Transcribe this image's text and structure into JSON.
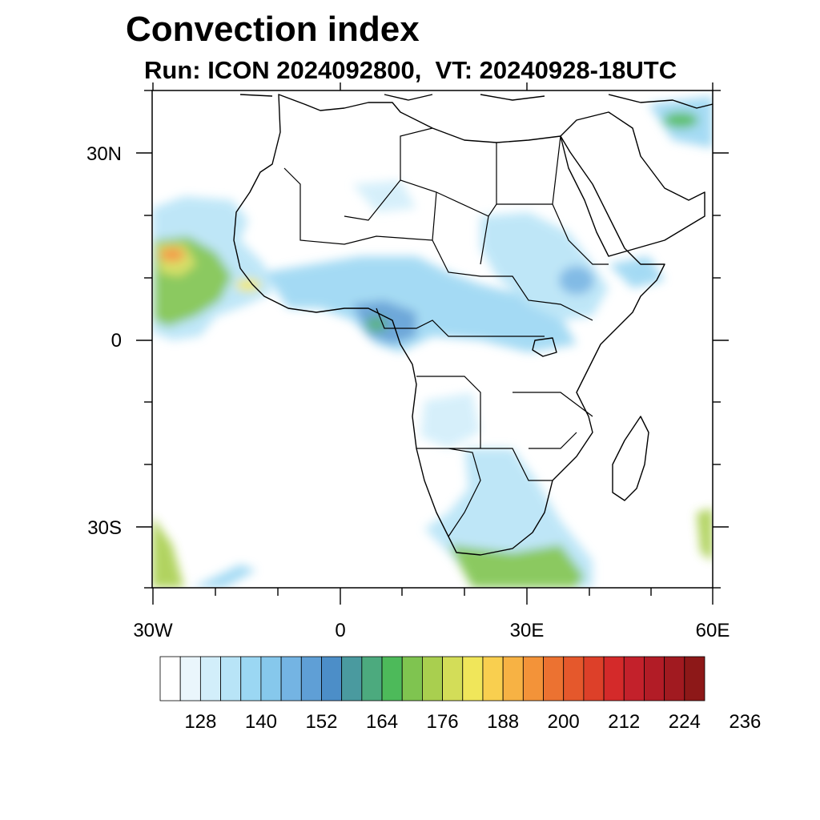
{
  "title": "Convection index",
  "subtitle": "Run: ICON 2024092800,  VT: 20240928-18UTC",
  "map": {
    "lon_range": [
      -30,
      60
    ],
    "lat_range": [
      -40,
      40
    ],
    "lat_labels": [
      "30N",
      "0",
      "30S"
    ],
    "lon_labels": [
      "30W",
      "0",
      "30E",
      "60E"
    ],
    "coastline_color": "#000000",
    "ocean_color": "#ffffff"
  },
  "colorbar": {
    "colors": [
      "#ffffff",
      "#eaf6fc",
      "#d2eefa",
      "#b8e4f7",
      "#9bd7f3",
      "#86c8ec",
      "#74b4e3",
      "#5f9fd6",
      "#4c8ec8",
      "#4a9a9f",
      "#4caa7e",
      "#4dba5a",
      "#7fc450",
      "#a9cf4f",
      "#d3dd58",
      "#f0e65a",
      "#f9cf4f",
      "#f7b244",
      "#f39339",
      "#ec7231",
      "#e5582c",
      "#dd4029",
      "#d42a2a",
      "#c3212b",
      "#b21c26",
      "#a11a20",
      "#8d1818"
    ],
    "labels": [
      "128",
      "140",
      "152",
      "164",
      "176",
      "188",
      "200",
      "212",
      "224",
      "236"
    ]
  }
}
